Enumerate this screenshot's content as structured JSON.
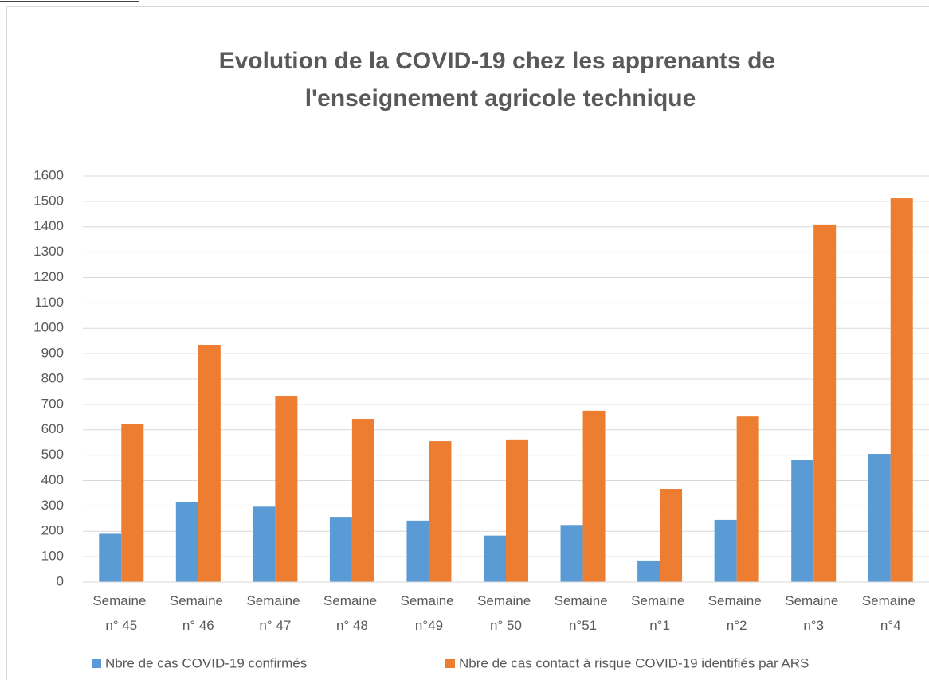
{
  "chart_data": {
    "type": "bar",
    "title": "Evolution de la COVID-19 chez les apprenants de l'enseignement agricole technique",
    "categories": [
      "Semaine n° 45",
      "Semaine n° 46",
      "Semaine n° 47",
      "Semaine n° 48",
      "Semaine n°49",
      "Semaine n° 50",
      "Semaine n°51",
      "Semaine n°1",
      "Semaine n°2",
      "Semaine n°3",
      "Semaine n°4"
    ],
    "series": [
      {
        "name": "Nbre de cas COVID-19 confirmés",
        "color": "#5b9bd5",
        "values": [
          190,
          315,
          297,
          257,
          242,
          183,
          225,
          85,
          245,
          480,
          505
        ]
      },
      {
        "name": "Nbre de cas contact à risque COVID-19 identifiés par ARS",
        "color": "#ed7d31",
        "values": [
          622,
          935,
          734,
          643,
          555,
          562,
          675,
          367,
          652,
          1409,
          1512
        ]
      }
    ],
    "ylim": [
      0,
      1600
    ],
    "yticks": [
      0,
      100,
      200,
      300,
      400,
      500,
      600,
      700,
      800,
      900,
      1000,
      1100,
      1200,
      1300,
      1400,
      1500,
      1600
    ],
    "grid": true,
    "legend": "bottom"
  }
}
